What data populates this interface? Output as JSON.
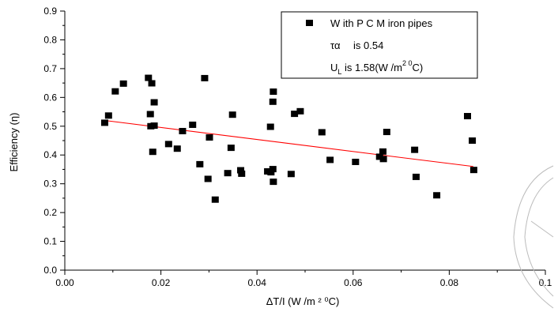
{
  "chart_data": {
    "type": "scatter",
    "title": "",
    "xlabel": "ΔT/I (W /m ² ⁰C)",
    "ylabel": "Efficiency (η)",
    "xlim": [
      0,
      0.1
    ],
    "ylim": [
      0,
      0.9
    ],
    "x_ticks": [
      0.0,
      0.02,
      0.04,
      0.06,
      0.08,
      0.1
    ],
    "x_tick_labels": [
      "0.00",
      "0.02",
      "0.04",
      "0.06",
      "0.08",
      "0.1"
    ],
    "y_ticks": [
      0.0,
      0.1,
      0.2,
      0.3,
      0.4,
      0.5,
      0.6,
      0.7,
      0.8,
      0.9
    ],
    "y_tick_labels": [
      "0.0",
      "0.1",
      "0.2",
      "0.3",
      "0.4",
      "0.5",
      "0.6",
      "0.7",
      "0.8",
      "0.9"
    ],
    "grid": false,
    "legend_position": "top-right",
    "legend": {
      "series_label": "W ith P C M  iron pipes",
      "line2_symbol": "τα",
      "line2_text": "is 0.54",
      "line3_prefix": "U",
      "line3_sub": "L",
      "line3_text": " is 1.58(W /m",
      "line3_sup": "2 0",
      "line3_suffix": "C)"
    },
    "series": [
      {
        "name": "W ith P C M  iron pipes",
        "marker": "square",
        "color": "#000000",
        "points": [
          [
            0.0083,
            0.512
          ],
          [
            0.0091,
            0.537
          ],
          [
            0.0105,
            0.621
          ],
          [
            0.0122,
            0.648
          ],
          [
            0.0174,
            0.668
          ],
          [
            0.0178,
            0.542
          ],
          [
            0.0179,
            0.5
          ],
          [
            0.0181,
            0.649
          ],
          [
            0.0183,
            0.411
          ],
          [
            0.0186,
            0.583
          ],
          [
            0.0186,
            0.502
          ],
          [
            0.0216,
            0.438
          ],
          [
            0.0234,
            0.422
          ],
          [
            0.0245,
            0.483
          ],
          [
            0.0266,
            0.505
          ],
          [
            0.0281,
            0.368
          ],
          [
            0.0291,
            0.667
          ],
          [
            0.0298,
            0.317
          ],
          [
            0.0301,
            0.461
          ],
          [
            0.0313,
            0.245
          ],
          [
            0.0339,
            0.337
          ],
          [
            0.0346,
            0.425
          ],
          [
            0.0349,
            0.54
          ],
          [
            0.0366,
            0.347
          ],
          [
            0.0368,
            0.335
          ],
          [
            0.0422,
            0.343
          ],
          [
            0.0428,
            0.498
          ],
          [
            0.0429,
            0.34
          ],
          [
            0.0433,
            0.585
          ],
          [
            0.0433,
            0.351
          ],
          [
            0.0434,
            0.62
          ],
          [
            0.0434,
            0.307
          ],
          [
            0.0471,
            0.334
          ],
          [
            0.0478,
            0.543
          ],
          [
            0.049,
            0.552
          ],
          [
            0.0535,
            0.479
          ],
          [
            0.0552,
            0.383
          ],
          [
            0.0605,
            0.376
          ],
          [
            0.0655,
            0.394
          ],
          [
            0.0662,
            0.412
          ],
          [
            0.0663,
            0.386
          ],
          [
            0.067,
            0.48
          ],
          [
            0.0728,
            0.418
          ],
          [
            0.0731,
            0.324
          ],
          [
            0.0774,
            0.26
          ],
          [
            0.0838,
            0.535
          ],
          [
            0.0848,
            0.45
          ],
          [
            0.0851,
            0.348
          ]
        ]
      }
    ],
    "fit_line": {
      "color": "#ff0000",
      "x": [
        0.0083,
        0.085
      ],
      "y": [
        0.52,
        0.36
      ]
    }
  }
}
